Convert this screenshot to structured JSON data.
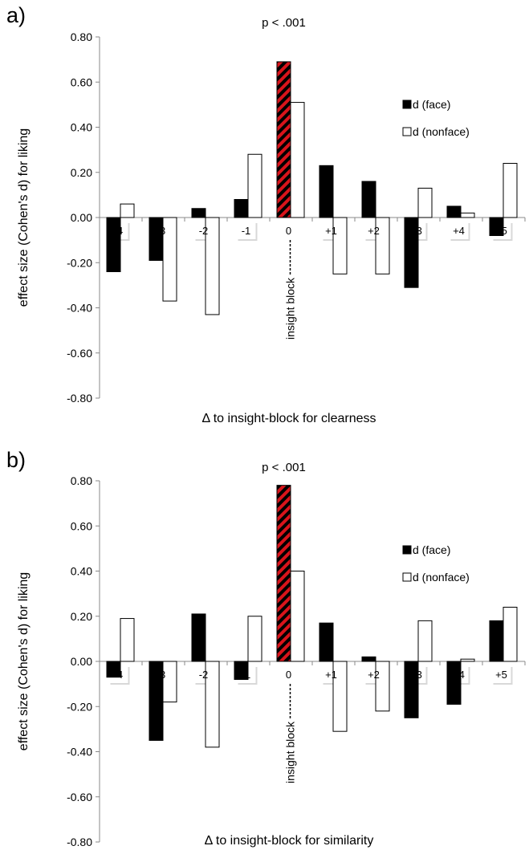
{
  "chart_data": [
    {
      "type": "bar",
      "panel_label": "a)",
      "categories": [
        "-4",
        "-3",
        "-2",
        "-1",
        "0",
        "+1",
        "+2",
        "+3",
        "+4",
        "+5"
      ],
      "series": [
        {
          "name": "d (face)",
          "color": "#000000",
          "values": [
            -0.24,
            -0.19,
            0.04,
            0.08,
            0.69,
            0.23,
            0.16,
            -0.31,
            0.05,
            -0.08
          ]
        },
        {
          "name": "d (nonface)",
          "color": "#ffffff",
          "values": [
            0.06,
            -0.37,
            -0.43,
            0.28,
            0.51,
            -0.25,
            -0.25,
            0.13,
            0.02,
            0.24
          ]
        }
      ],
      "highlight": {
        "category": "0",
        "series": "d (face)",
        "pattern": "red-black-diagonal-stripes"
      },
      "annotation": "p < .001",
      "insight_label": "insight block",
      "xlabel": "Δ to insight-block for clearness",
      "ylabel": "effect size (Cohen's d) for liking",
      "ylim": [
        -0.8,
        0.8
      ],
      "yticks": [
        "0.80",
        "0.60",
        "0.40",
        "0.20",
        "0.00",
        "-0.20",
        "-0.40",
        "-0.60",
        "-0.80"
      ],
      "legend_position": "right"
    },
    {
      "type": "bar",
      "panel_label": "b)",
      "categories": [
        "-4",
        "-3",
        "-2",
        "-1",
        "0",
        "+1",
        "+2",
        "+3",
        "+4",
        "+5"
      ],
      "series": [
        {
          "name": "d (face)",
          "color": "#000000",
          "values": [
            -0.07,
            -0.35,
            0.21,
            -0.08,
            0.78,
            0.17,
            0.02,
            -0.25,
            -0.19,
            0.18
          ]
        },
        {
          "name": "d (nonface)",
          "color": "#ffffff",
          "values": [
            0.19,
            -0.18,
            -0.38,
            0.2,
            0.4,
            -0.31,
            -0.22,
            0.18,
            0.01,
            0.24
          ]
        }
      ],
      "highlight": {
        "category": "0",
        "series": "d (face)",
        "pattern": "red-black-diagonal-stripes"
      },
      "annotation": "p < .001",
      "insight_label": "insight block",
      "xlabel": "Δ to insight-block for similarity",
      "ylabel": "effect size (Cohen's d) for liking",
      "ylim": [
        -0.8,
        0.8
      ],
      "yticks": [
        "0.80",
        "0.60",
        "0.40",
        "0.20",
        "0.00",
        "-0.20",
        "-0.40",
        "-0.60",
        "-0.80"
      ],
      "legend_position": "right"
    }
  ]
}
